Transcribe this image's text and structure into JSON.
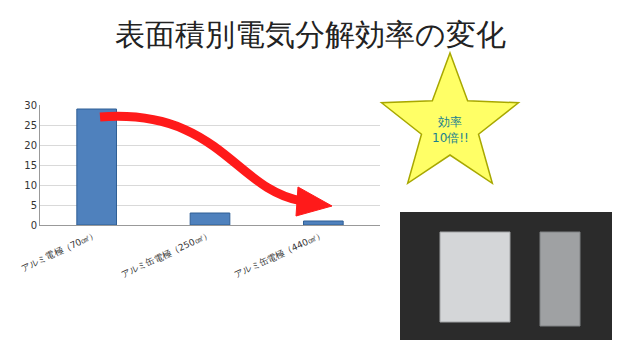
{
  "chart_data": {
    "type": "bar",
    "title": "表面積別電気分解効率の変化",
    "categories": [
      "アルミ電極（70㎠）",
      "アルミ缶電極（250㎠）",
      "アルミ缶電極（440㎠）"
    ],
    "values": [
      29,
      3,
      1
    ],
    "color": "#4f81bd",
    "ylim": [
      0,
      30
    ],
    "yticks": [
      0,
      5,
      10,
      15,
      20,
      25,
      30
    ],
    "grid": true,
    "annotations": [
      "効率\n10倍!!"
    ]
  }
}
